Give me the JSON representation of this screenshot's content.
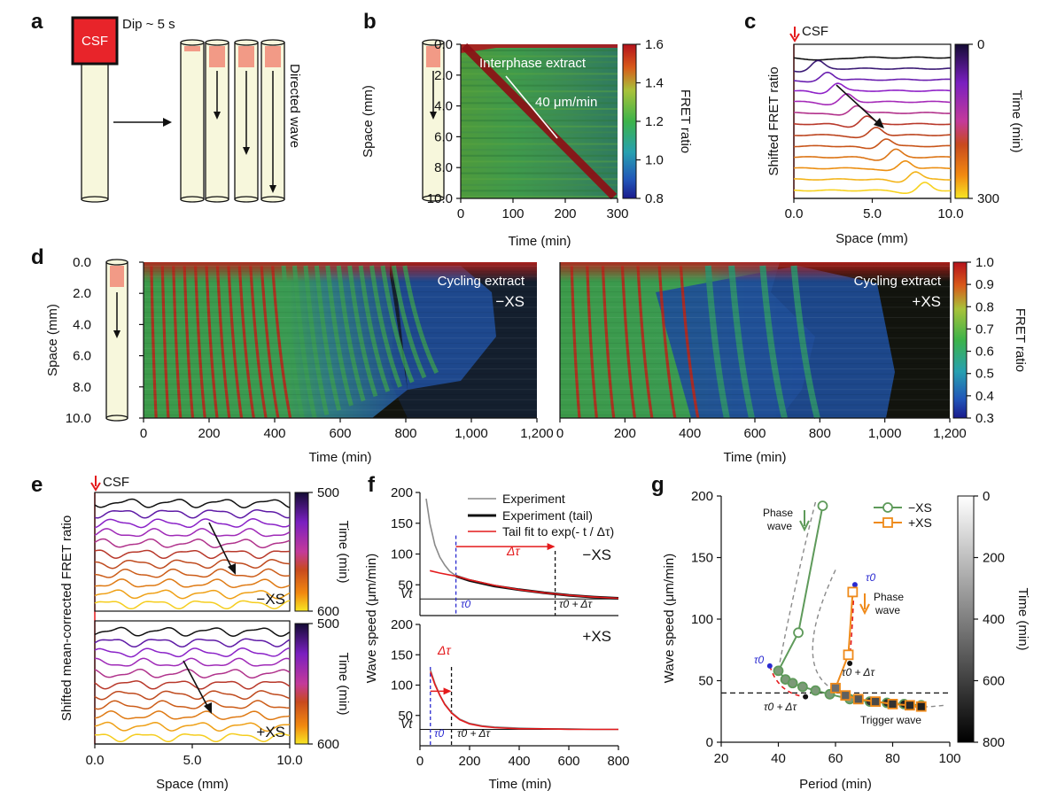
{
  "panel_labels": [
    "a",
    "b",
    "c",
    "d",
    "e",
    "f",
    "g"
  ],
  "panel_a": {
    "csf_label": "CSF",
    "dip_label": "Dip ~ 5 s",
    "wave_label": "Directed wave"
  },
  "panel_b": {
    "annotation": "Interphase extract",
    "speed_label": "40 μm/min",
    "ylabel": "Space (mm)",
    "xlabel": "Time (min)",
    "cbar_label": "FRET ratio"
  },
  "panel_c": {
    "csf_label": "CSF",
    "ylabel": "Shifted FRET ratio",
    "xlabel": "Space (mm)",
    "cbar_label": "Time (min)"
  },
  "panel_d": {
    "left_title": "Cycling extract",
    "left_cond": "−XS",
    "right_title": "Cycling extract",
    "right_cond": "+XS",
    "ylabel": "Space (mm)",
    "xlabel": "Time (min)",
    "cbar_label": "FRET ratio"
  },
  "panel_e": {
    "csf_label": "CSF",
    "ylabel": "Shifted mean-corrected FRET ratio",
    "xlabel": "Space (mm)",
    "cbar_label": "Time (min)",
    "top_cond": "−XS",
    "bottom_cond": "+XS"
  },
  "panel_f": {
    "ylabel": "Wave speed (μm/min)",
    "xlabel": "Time (min)",
    "legend": [
      "Experiment",
      "Experiment (tail)",
      "Tail fit to exp(- t / Δτ)"
    ],
    "top_cond": "−XS",
    "bottom_cond": "+XS",
    "dtau": "Δτ",
    "tau0": "τ0",
    "tau0_dtau": "τ0 + Δτ",
    "vt": "Vt"
  },
  "panel_g": {
    "ylabel": "Wave speed (μm/min)",
    "xlabel": "Period (min)",
    "cbar_label": "Time (min)",
    "legend": [
      "−XS",
      "+XS"
    ],
    "phase_wave": "Phase wave",
    "trigger_wave": "Trigger wave",
    "tau0": "τ0",
    "tau0_dtau": "τ0 + Δτ"
  },
  "colors": {
    "csf": "#e8242a",
    "tube": "#f7f7dc",
    "pink": "#f29a86",
    "minus_xs": "#5e9a5a",
    "plus_xs": "#ef8a1a",
    "fit": "#e41a1c",
    "dashed_blue": "#2a2ad0"
  },
  "chart_data": [
    {
      "panel": "b",
      "type": "heatmap",
      "xlabel": "Time (min)",
      "ylabel": "Space (mm)",
      "x_ticks": [
        "0",
        "100",
        "200",
        "300"
      ],
      "y_ticks": [
        "0.0",
        "2.0",
        "4.0",
        "6.0",
        "8.0",
        "10.0"
      ],
      "xlim": [
        0,
        300
      ],
      "ylim": [
        0,
        10
      ],
      "colorbar": {
        "label": "FRET ratio",
        "ticks": [
          "1.6",
          "1.4",
          "1.2",
          "1.0",
          "0.8"
        ],
        "range": [
          0.8,
          1.6
        ]
      },
      "annotations": [
        "Interphase extract",
        "40 μm/min"
      ],
      "wave_front": {
        "x": [
          0,
          300
        ],
        "y": [
          0,
          10
        ]
      }
    },
    {
      "panel": "c",
      "type": "line",
      "xlabel": "Space (mm)",
      "ylabel": "Shifted FRET ratio",
      "x_ticks": [
        "0.0",
        "5.0",
        "10.0"
      ],
      "xlim": [
        0,
        10
      ],
      "n_traces": 13,
      "colorbar": {
        "label": "Time (min)",
        "ticks": [
          "0",
          "300"
        ],
        "range": [
          0,
          300
        ]
      }
    },
    {
      "panel": "d-left",
      "type": "heatmap",
      "title": "Cycling extract",
      "condition": "−XS",
      "xlabel": "Time (min)",
      "ylabel": "Space (mm)",
      "x_ticks": [
        "0",
        "200",
        "400",
        "600",
        "800",
        "1,000",
        "1,200"
      ],
      "y_ticks": [
        "0.0",
        "2.0",
        "4.0",
        "6.0",
        "8.0",
        "10.0"
      ],
      "xlim": [
        0,
        1200
      ],
      "ylim": [
        0,
        10
      ]
    },
    {
      "panel": "d-right",
      "type": "heatmap",
      "title": "Cycling extract",
      "condition": "+XS",
      "xlabel": "Time (min)",
      "x_ticks": [
        "0",
        "200",
        "400",
        "600",
        "800",
        "1,000",
        "1,200"
      ],
      "xlim": [
        0,
        1200
      ],
      "ylim": [
        0,
        10
      ],
      "colorbar": {
        "label": "FRET ratio",
        "ticks": [
          "1.0",
          "0.9",
          "0.8",
          "0.7",
          "0.6",
          "0.5",
          "0.4",
          "0.3"
        ],
        "range": [
          0.3,
          1.0
        ]
      }
    },
    {
      "panel": "e-top",
      "type": "line",
      "condition": "−XS",
      "xlabel": "Space (mm)",
      "x_ticks": [
        "0.0",
        "5.0",
        "10.0"
      ],
      "xlim": [
        0,
        10
      ],
      "n_traces": 11,
      "colorbar": {
        "label": "Time (min)",
        "ticks": [
          "500",
          "600"
        ],
        "range": [
          500,
          600
        ]
      }
    },
    {
      "panel": "e-bottom",
      "type": "line",
      "condition": "+XS",
      "xlabel": "Space (mm)",
      "x_ticks": [
        "0.0",
        "5.0",
        "10.0"
      ],
      "xlim": [
        0,
        10
      ],
      "n_traces": 11,
      "colorbar": {
        "label": "Time (min)",
        "ticks": [
          "500",
          "600"
        ],
        "range": [
          500,
          600
        ]
      }
    },
    {
      "panel": "f-top",
      "type": "line",
      "condition": "−XS",
      "ylabel": "Wave speed (μm/min)",
      "y_ticks": [
        "50",
        "100",
        "150",
        "200"
      ],
      "xlim": [
        0,
        800
      ],
      "ylim": [
        0,
        200
      ],
      "vt": 27,
      "tau0": 145,
      "tau0_plus_dtau": 545,
      "series": [
        {
          "name": "Experiment",
          "x": [
            25,
            40,
            60,
            80,
            100,
            120,
            140,
            160,
            200,
            300,
            400,
            500,
            600,
            700,
            800
          ],
          "y": [
            190,
            150,
            115,
            95,
            82,
            72,
            66,
            62,
            57,
            48,
            42,
            37,
            33,
            30,
            28
          ]
        },
        {
          "name": "Experiment (tail)",
          "x": [
            145,
            200,
            300,
            400,
            500,
            600,
            700,
            800
          ],
          "y": [
            64,
            57,
            48,
            42,
            37,
            33,
            30,
            28
          ]
        },
        {
          "name": "Tail fit to exp(- t / Δτ)",
          "x": [
            40,
            80,
            145,
            200,
            300,
            400,
            500,
            600,
            700,
            800
          ],
          "y": [
            73,
            69,
            64,
            58,
            49,
            42,
            37,
            33,
            30,
            28
          ]
        }
      ]
    },
    {
      "panel": "f-bottom",
      "type": "line",
      "condition": "+XS",
      "xlabel": "Time (min)",
      "x_ticks": [
        "0",
        "200",
        "400",
        "600",
        "800"
      ],
      "y_ticks": [
        "50",
        "100",
        "150",
        "200"
      ],
      "xlim": [
        0,
        800
      ],
      "ylim": [
        0,
        200
      ],
      "vt": 27,
      "tau0": 42,
      "tau0_plus_dtau": 127,
      "series": [
        {
          "name": "Experiment",
          "x": [
            42,
            60,
            80,
            100,
            127,
            160,
            200,
            250,
            300,
            400,
            500,
            600,
            700,
            800
          ],
          "y": [
            125,
            103,
            84,
            69,
            55,
            44,
            37,
            33,
            31,
            29,
            28,
            28,
            27,
            27
          ]
        },
        {
          "name": "Tail fit to exp(- t / Δτ)",
          "x": [
            42,
            60,
            80,
            100,
            127,
            160,
            200,
            250,
            300,
            400,
            500,
            600,
            700,
            800
          ],
          "y": [
            122,
            101,
            83,
            68,
            54,
            43,
            36,
            32,
            30,
            28,
            28,
            27,
            27,
            27
          ]
        }
      ]
    },
    {
      "panel": "g",
      "type": "scatter",
      "xlabel": "Period (min)",
      "ylabel": "Wave speed (μm/min)",
      "x_ticks": [
        "20",
        "40",
        "60",
        "80",
        "100"
      ],
      "y_ticks": [
        "0",
        "50",
        "100",
        "150",
        "200"
      ],
      "xlim": [
        20,
        100
      ],
      "ylim": [
        0,
        200
      ],
      "threshold": 40,
      "colorbar": {
        "label": "Time (min)",
        "ticks": [
          "0",
          "200",
          "400",
          "600",
          "800"
        ],
        "range": [
          0,
          800
        ]
      },
      "series": [
        {
          "name": "−XS",
          "x": [
            55.5,
            47,
            40,
            42.5,
            45,
            48.5,
            53,
            58,
            65,
            72,
            78,
            84,
            90
          ],
          "y": [
            192,
            89,
            58,
            51,
            48,
            45,
            42,
            39,
            35,
            33,
            32,
            31,
            30
          ]
        },
        {
          "name": "+XS",
          "x": [
            66,
            64.5,
            60,
            63.5,
            68,
            74,
            80,
            86,
            90
          ],
          "y": [
            122,
            71,
            44,
            38,
            35,
            33,
            31,
            30,
            29
          ]
        }
      ]
    }
  ]
}
